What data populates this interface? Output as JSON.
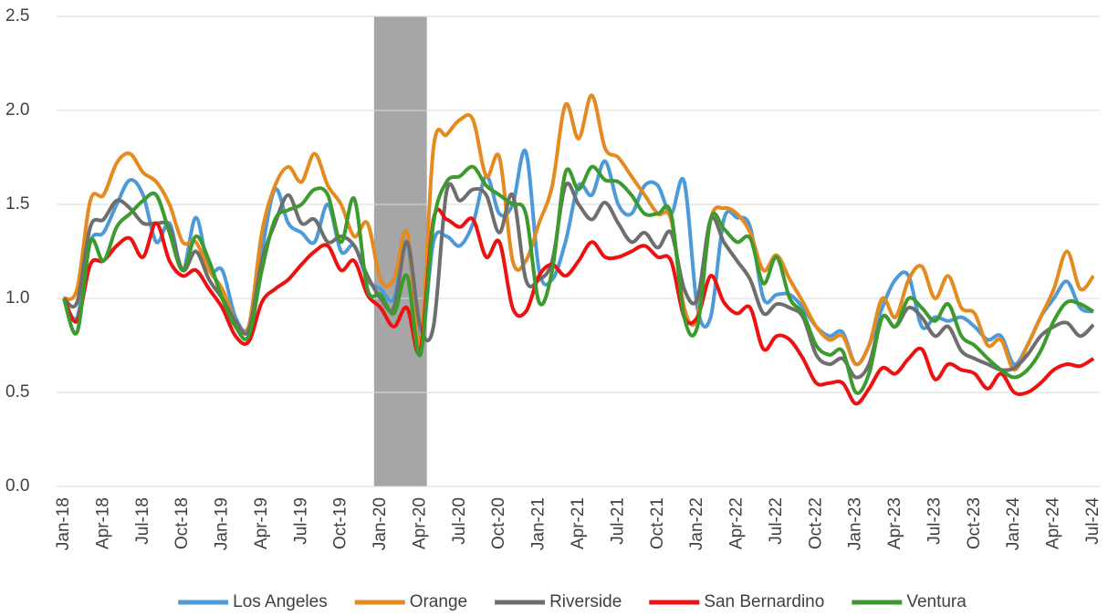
{
  "chart_data": {
    "type": "line",
    "categories": [
      "Jan-18",
      null,
      null,
      "Apr-18",
      null,
      null,
      "Jul-18",
      null,
      null,
      "Oct-18",
      null,
      null,
      "Jan-19",
      null,
      null,
      "Apr-19",
      null,
      null,
      "Jul-19",
      null,
      null,
      "Oct-19",
      null,
      null,
      "Jan-20",
      null,
      null,
      "Apr-20",
      null,
      null,
      "Jul-20",
      null,
      null,
      "Oct-20",
      null,
      null,
      "Jan-21",
      null,
      null,
      "Apr-21",
      null,
      null,
      "Jul-21",
      null,
      null,
      "Oct-21",
      null,
      null,
      "Jan-22",
      null,
      null,
      "Apr-22",
      null,
      null,
      "Jul-22",
      null,
      null,
      "Oct-22",
      null,
      null,
      "Jan-23",
      null,
      null,
      "Apr-23",
      null,
      null,
      "Jul-23",
      null,
      null,
      "Oct-23",
      null,
      null,
      "Jan-24",
      null,
      null,
      "Apr-24",
      null,
      null,
      "Jul-24"
    ],
    "series": [
      {
        "name": "Los Angeles",
        "color": "#4e9ad8",
        "values": [
          1.0,
          0.9,
          1.3,
          1.35,
          1.5,
          1.63,
          1.55,
          1.3,
          1.4,
          1.15,
          1.43,
          1.15,
          1.15,
          0.9,
          0.85,
          1.25,
          1.58,
          1.4,
          1.35,
          1.3,
          1.5,
          1.25,
          1.28,
          1.1,
          1.05,
          1.0,
          1.3,
          0.75,
          1.3,
          1.33,
          1.28,
          1.4,
          1.65,
          1.45,
          1.5,
          1.78,
          1.15,
          1.1,
          1.3,
          1.6,
          1.55,
          1.73,
          1.5,
          1.45,
          1.6,
          1.6,
          1.45,
          1.62,
          0.95,
          0.9,
          1.42,
          1.43,
          1.38,
          1.0,
          1.02,
          1.02,
          0.95,
          0.85,
          0.8,
          0.82,
          0.65,
          0.75,
          0.95,
          1.1,
          1.12,
          0.85,
          0.9,
          0.88,
          0.9,
          0.85,
          0.78,
          0.8,
          0.65,
          0.75,
          0.9,
          1.0,
          1.09,
          0.95,
          0.93
        ]
      },
      {
        "name": "Orange",
        "color": "#e58a1f",
        "values": [
          1.0,
          1.05,
          1.52,
          1.55,
          1.72,
          1.77,
          1.67,
          1.62,
          1.5,
          1.3,
          1.3,
          1.15,
          1.05,
          0.88,
          0.85,
          1.35,
          1.6,
          1.7,
          1.62,
          1.77,
          1.6,
          1.5,
          1.33,
          1.4,
          1.1,
          1.1,
          1.35,
          0.75,
          1.8,
          1.87,
          1.95,
          1.95,
          1.65,
          1.75,
          1.2,
          1.2,
          1.4,
          1.6,
          2.03,
          1.85,
          2.08,
          1.8,
          1.75,
          1.65,
          1.55,
          1.45,
          1.42,
          0.95,
          0.9,
          1.42,
          1.48,
          1.45,
          1.35,
          1.15,
          1.23,
          1.1,
          0.98,
          0.85,
          0.78,
          0.8,
          0.65,
          0.75,
          1.0,
          0.9,
          1.1,
          1.17,
          1.0,
          1.12,
          0.95,
          0.92,
          0.75,
          0.78,
          0.62,
          0.75,
          0.9,
          1.05,
          1.25,
          1.05,
          1.12
        ]
      },
      {
        "name": "Riverside",
        "color": "#6e6e6e",
        "values": [
          1.0,
          0.98,
          1.38,
          1.42,
          1.52,
          1.48,
          1.4,
          1.4,
          1.38,
          1.15,
          1.25,
          1.1,
          1.0,
          0.88,
          0.83,
          1.2,
          1.4,
          1.55,
          1.4,
          1.42,
          1.3,
          1.33,
          1.28,
          1.12,
          1.0,
          0.95,
          1.3,
          0.85,
          0.85,
          1.57,
          1.52,
          1.58,
          1.55,
          1.35,
          1.55,
          1.1,
          1.1,
          1.2,
          1.6,
          1.5,
          1.42,
          1.51,
          1.4,
          1.3,
          1.35,
          1.27,
          1.35,
          1.05,
          1.0,
          1.42,
          1.3,
          1.2,
          1.1,
          0.92,
          0.97,
          0.95,
          0.9,
          0.7,
          0.65,
          0.68,
          0.58,
          0.65,
          0.9,
          0.85,
          0.95,
          0.9,
          0.8,
          0.85,
          0.72,
          0.68,
          0.65,
          0.62,
          0.63,
          0.7,
          0.8,
          0.85,
          0.87,
          0.8,
          0.86
        ]
      },
      {
        "name": "San Bernardino",
        "color": "#ee1111",
        "values": [
          1.0,
          0.88,
          1.18,
          1.2,
          1.28,
          1.32,
          1.22,
          1.4,
          1.2,
          1.12,
          1.15,
          1.05,
          0.95,
          0.8,
          0.77,
          0.98,
          1.05,
          1.1,
          1.18,
          1.25,
          1.28,
          1.15,
          1.2,
          1.02,
          0.95,
          0.85,
          0.95,
          0.72,
          1.42,
          1.42,
          1.38,
          1.42,
          1.22,
          1.3,
          0.95,
          0.93,
          1.12,
          1.18,
          1.12,
          1.2,
          1.3,
          1.22,
          1.22,
          1.25,
          1.28,
          1.22,
          1.2,
          0.9,
          0.9,
          1.12,
          0.98,
          0.92,
          0.95,
          0.73,
          0.8,
          0.78,
          0.68,
          0.55,
          0.55,
          0.55,
          0.44,
          0.52,
          0.63,
          0.6,
          0.68,
          0.73,
          0.57,
          0.65,
          0.62,
          0.6,
          0.52,
          0.6,
          0.5,
          0.5,
          0.55,
          0.62,
          0.65,
          0.64,
          0.68
        ]
      },
      {
        "name": "Ventura",
        "color": "#3c9a2e",
        "values": [
          1.0,
          0.82,
          1.3,
          1.2,
          1.38,
          1.45,
          1.52,
          1.55,
          1.35,
          1.15,
          1.33,
          1.2,
          1.0,
          0.85,
          0.8,
          1.15,
          1.42,
          1.47,
          1.5,
          1.58,
          1.55,
          1.3,
          1.53,
          1.05,
          1.02,
          0.92,
          1.12,
          0.7,
          1.4,
          1.62,
          1.65,
          1.7,
          1.6,
          1.55,
          1.5,
          1.45,
          0.98,
          1.15,
          1.67,
          1.58,
          1.7,
          1.63,
          1.62,
          1.55,
          1.45,
          1.45,
          1.45,
          0.9,
          0.85,
          1.42,
          1.37,
          1.3,
          1.32,
          1.08,
          1.22,
          1.0,
          0.92,
          0.75,
          0.7,
          0.72,
          0.5,
          0.6,
          0.9,
          0.85,
          1.0,
          0.95,
          0.88,
          0.97,
          0.8,
          0.75,
          0.68,
          0.62,
          0.58,
          0.62,
          0.72,
          0.88,
          0.98,
          0.97,
          0.93
        ]
      }
    ],
    "ylim": [
      0,
      2.5
    ],
    "yticks": [
      {
        "value": 0,
        "label": "0.0"
      },
      0.5,
      {
        "value": 1,
        "label": "1.0"
      },
      1.5,
      {
        "value": 2,
        "label": "2.0"
      },
      2.5
    ],
    "grid": true,
    "shaded_range": {
      "from": "Jan-20",
      "to": "Apr-20",
      "color": "#a6a6a6"
    },
    "legend": "bottom"
  }
}
